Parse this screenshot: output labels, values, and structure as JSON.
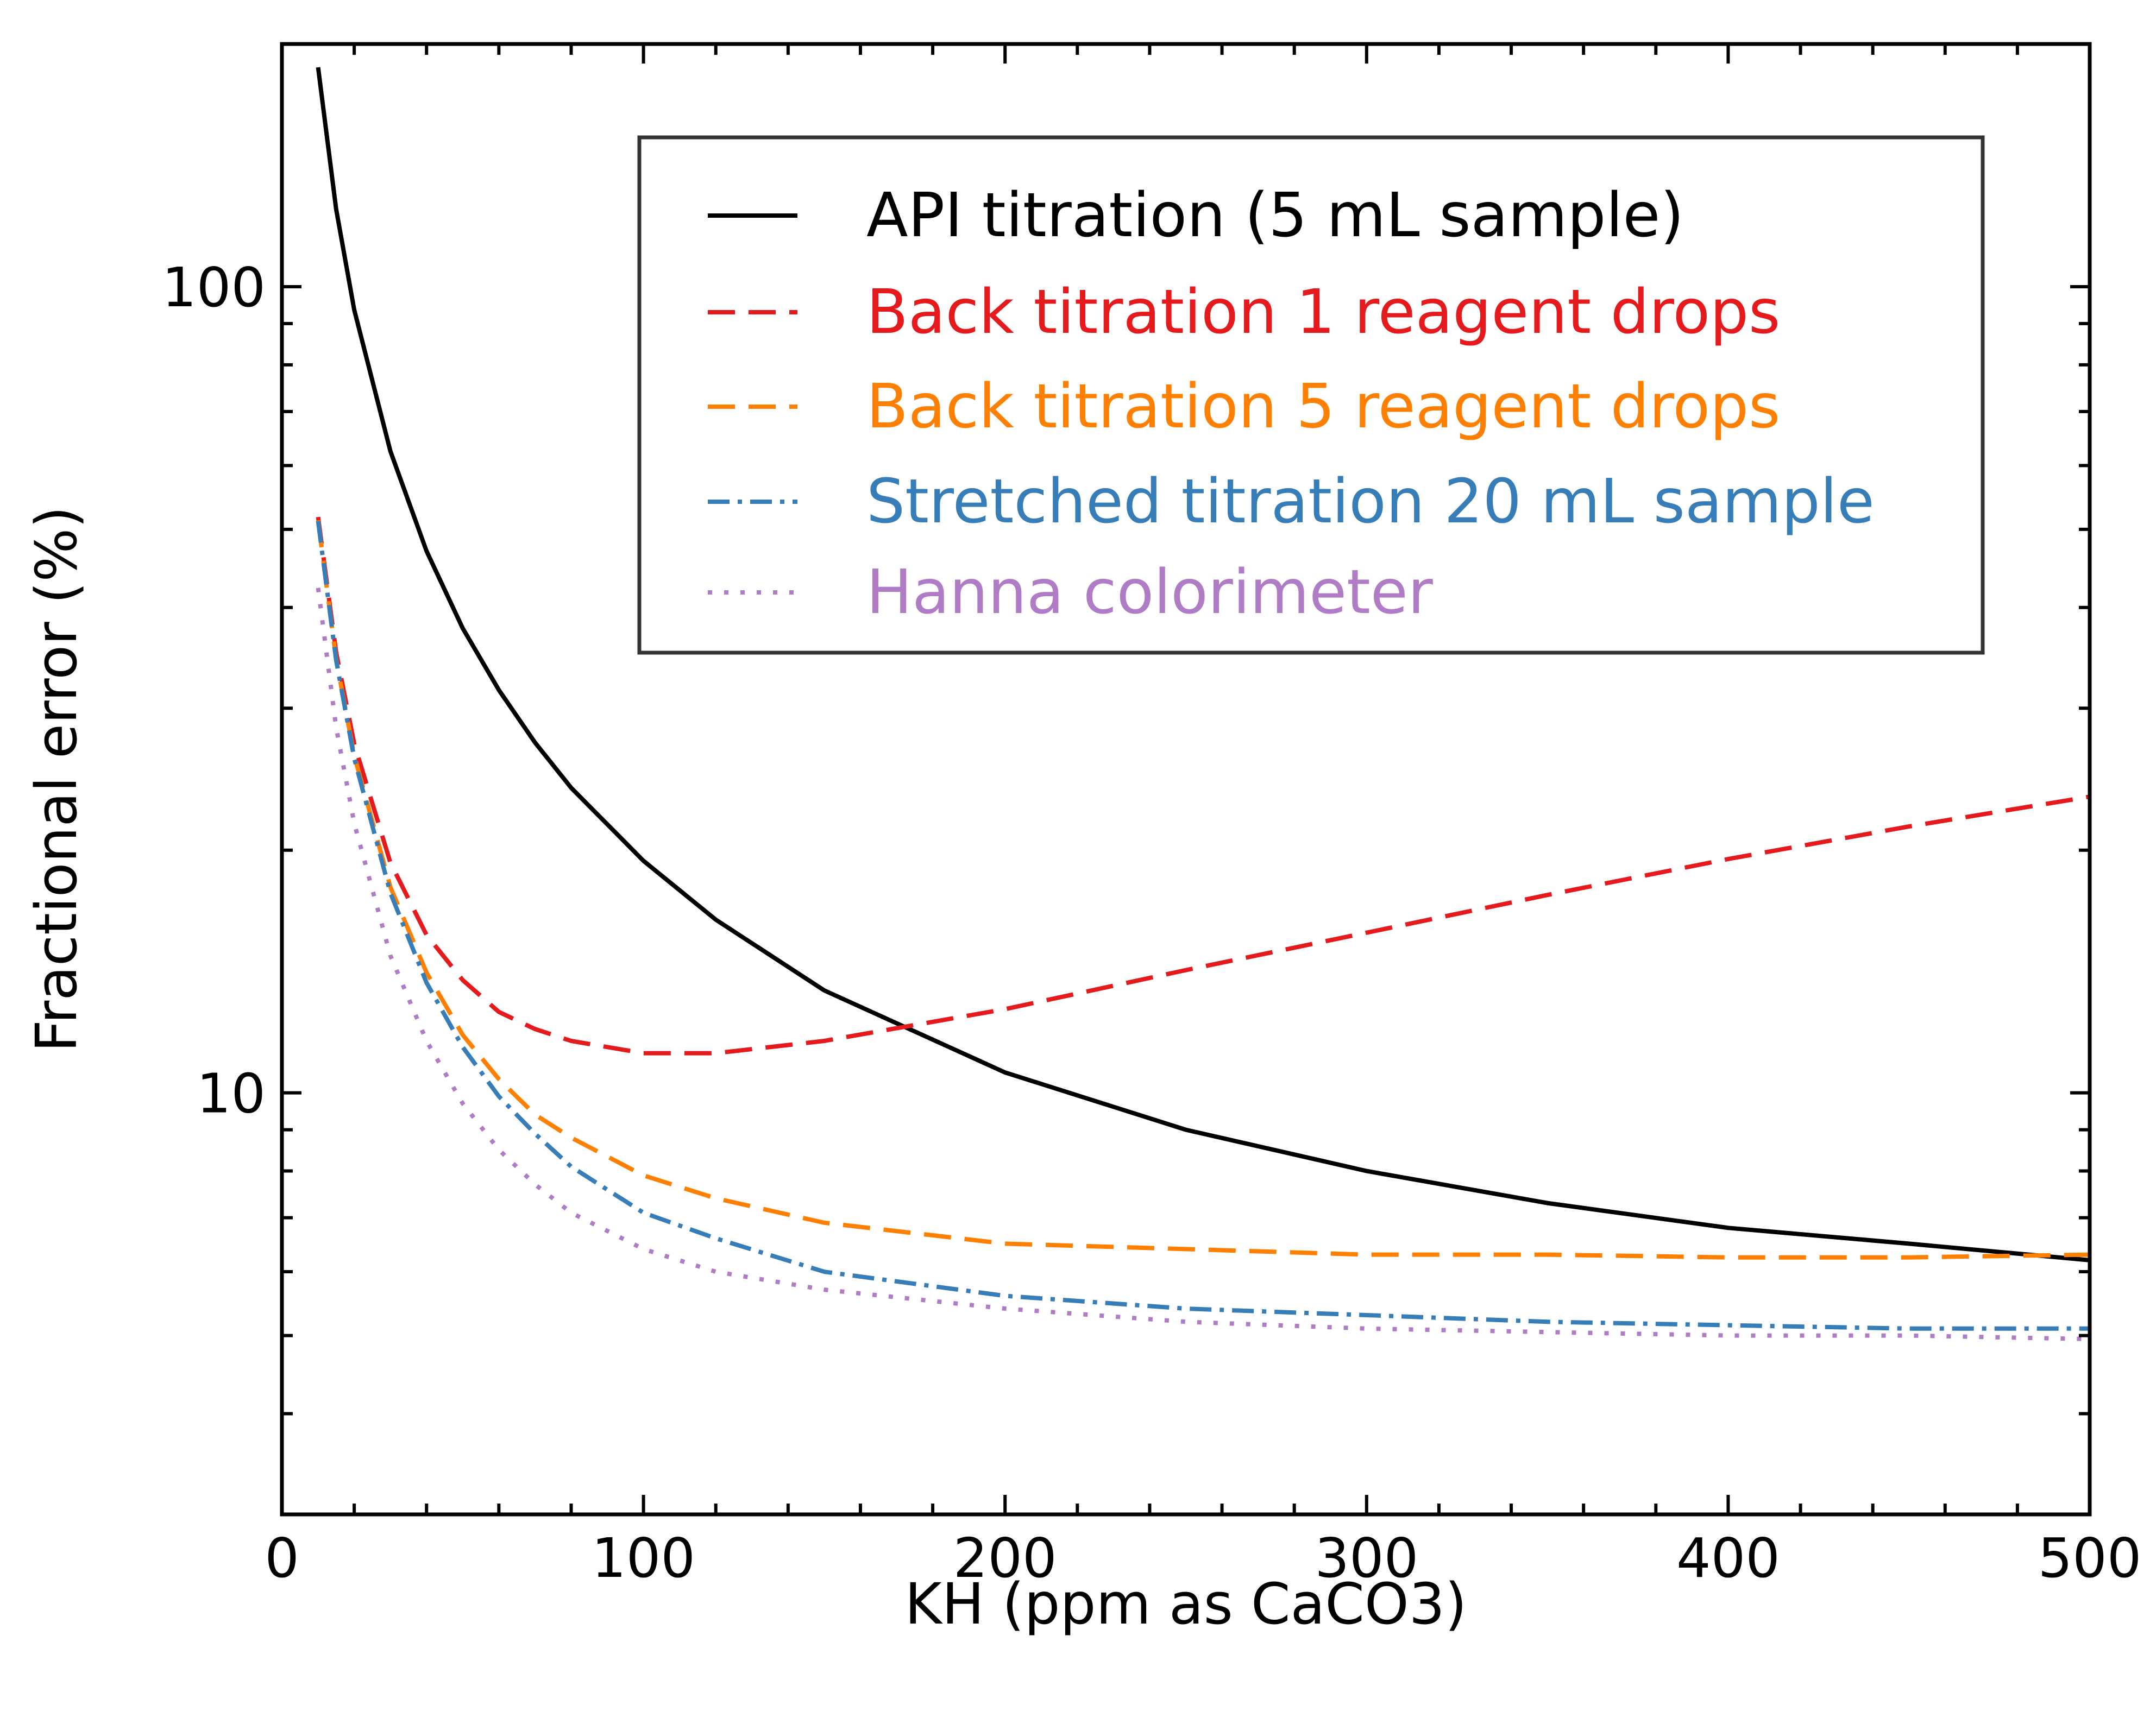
{
  "chart_data": {
    "type": "line",
    "title": "",
    "xlabel": "KH (ppm as CaCO3)",
    "ylabel": "Fractional error (%)",
    "xlim": [
      0,
      500
    ],
    "ylim": [
      3,
      200
    ],
    "yscale": "log",
    "grid": false,
    "legend_placement": "top-right",
    "x_ticks": [
      0,
      100,
      200,
      300,
      400,
      500
    ],
    "x_tick_labels": [
      "0",
      "100",
      "200",
      "300",
      "400",
      "500"
    ],
    "y_ticks": [
      10,
      100
    ],
    "y_tick_labels": [
      "10",
      "100"
    ],
    "x": [
      10,
      15,
      20,
      30,
      40,
      50,
      60,
      70,
      80,
      100,
      120,
      150,
      200,
      250,
      300,
      350,
      400,
      450,
      500
    ],
    "series": [
      {
        "name": "API titration (5 mL sample)",
        "color": "#000000",
        "style": "solid",
        "values": [
          187.1,
          124.8,
          93.6,
          62.5,
          47.0,
          37.7,
          31.6,
          27.2,
          23.9,
          19.4,
          16.4,
          13.4,
          10.6,
          9.0,
          8.0,
          7.3,
          6.8,
          6.5,
          6.2
        ]
      },
      {
        "name": "Back titration 1 reagent drops",
        "color": "#e41a1c",
        "style": "dashed",
        "values": [
          51.8,
          35.2,
          27.1,
          19.3,
          15.7,
          13.8,
          12.6,
          12.0,
          11.6,
          11.2,
          11.2,
          11.6,
          12.7,
          14.2,
          15.8,
          17.6,
          19.5,
          21.4,
          23.3
        ]
      },
      {
        "name": "Back titration 5 reagent drops",
        "color": "#ff7f00",
        "style": "dashed",
        "values": [
          51.3,
          34.5,
          26.2,
          18.0,
          14.1,
          11.8,
          10.4,
          9.4,
          8.8,
          7.9,
          7.4,
          6.9,
          6.5,
          6.4,
          6.3,
          6.3,
          6.25,
          6.25,
          6.3
        ]
      },
      {
        "name": "Stretched titration 20 mL sample",
        "color": "#377eb8",
        "style": "dashdot",
        "values": [
          51.2,
          34.4,
          26.0,
          17.7,
          13.7,
          11.4,
          9.9,
          8.9,
          8.1,
          7.1,
          6.6,
          6.0,
          5.6,
          5.4,
          5.3,
          5.2,
          5.15,
          5.1,
          5.1
        ]
      },
      {
        "name": "Hanna colorimeter",
        "color": "#b07cc6",
        "style": "dotted",
        "values": [
          42.3,
          28.4,
          21.6,
          14.8,
          11.6,
          9.7,
          8.5,
          7.7,
          7.1,
          6.4,
          6.0,
          5.7,
          5.4,
          5.2,
          5.1,
          5.05,
          5.0,
          5.0,
          4.95
        ]
      }
    ]
  }
}
